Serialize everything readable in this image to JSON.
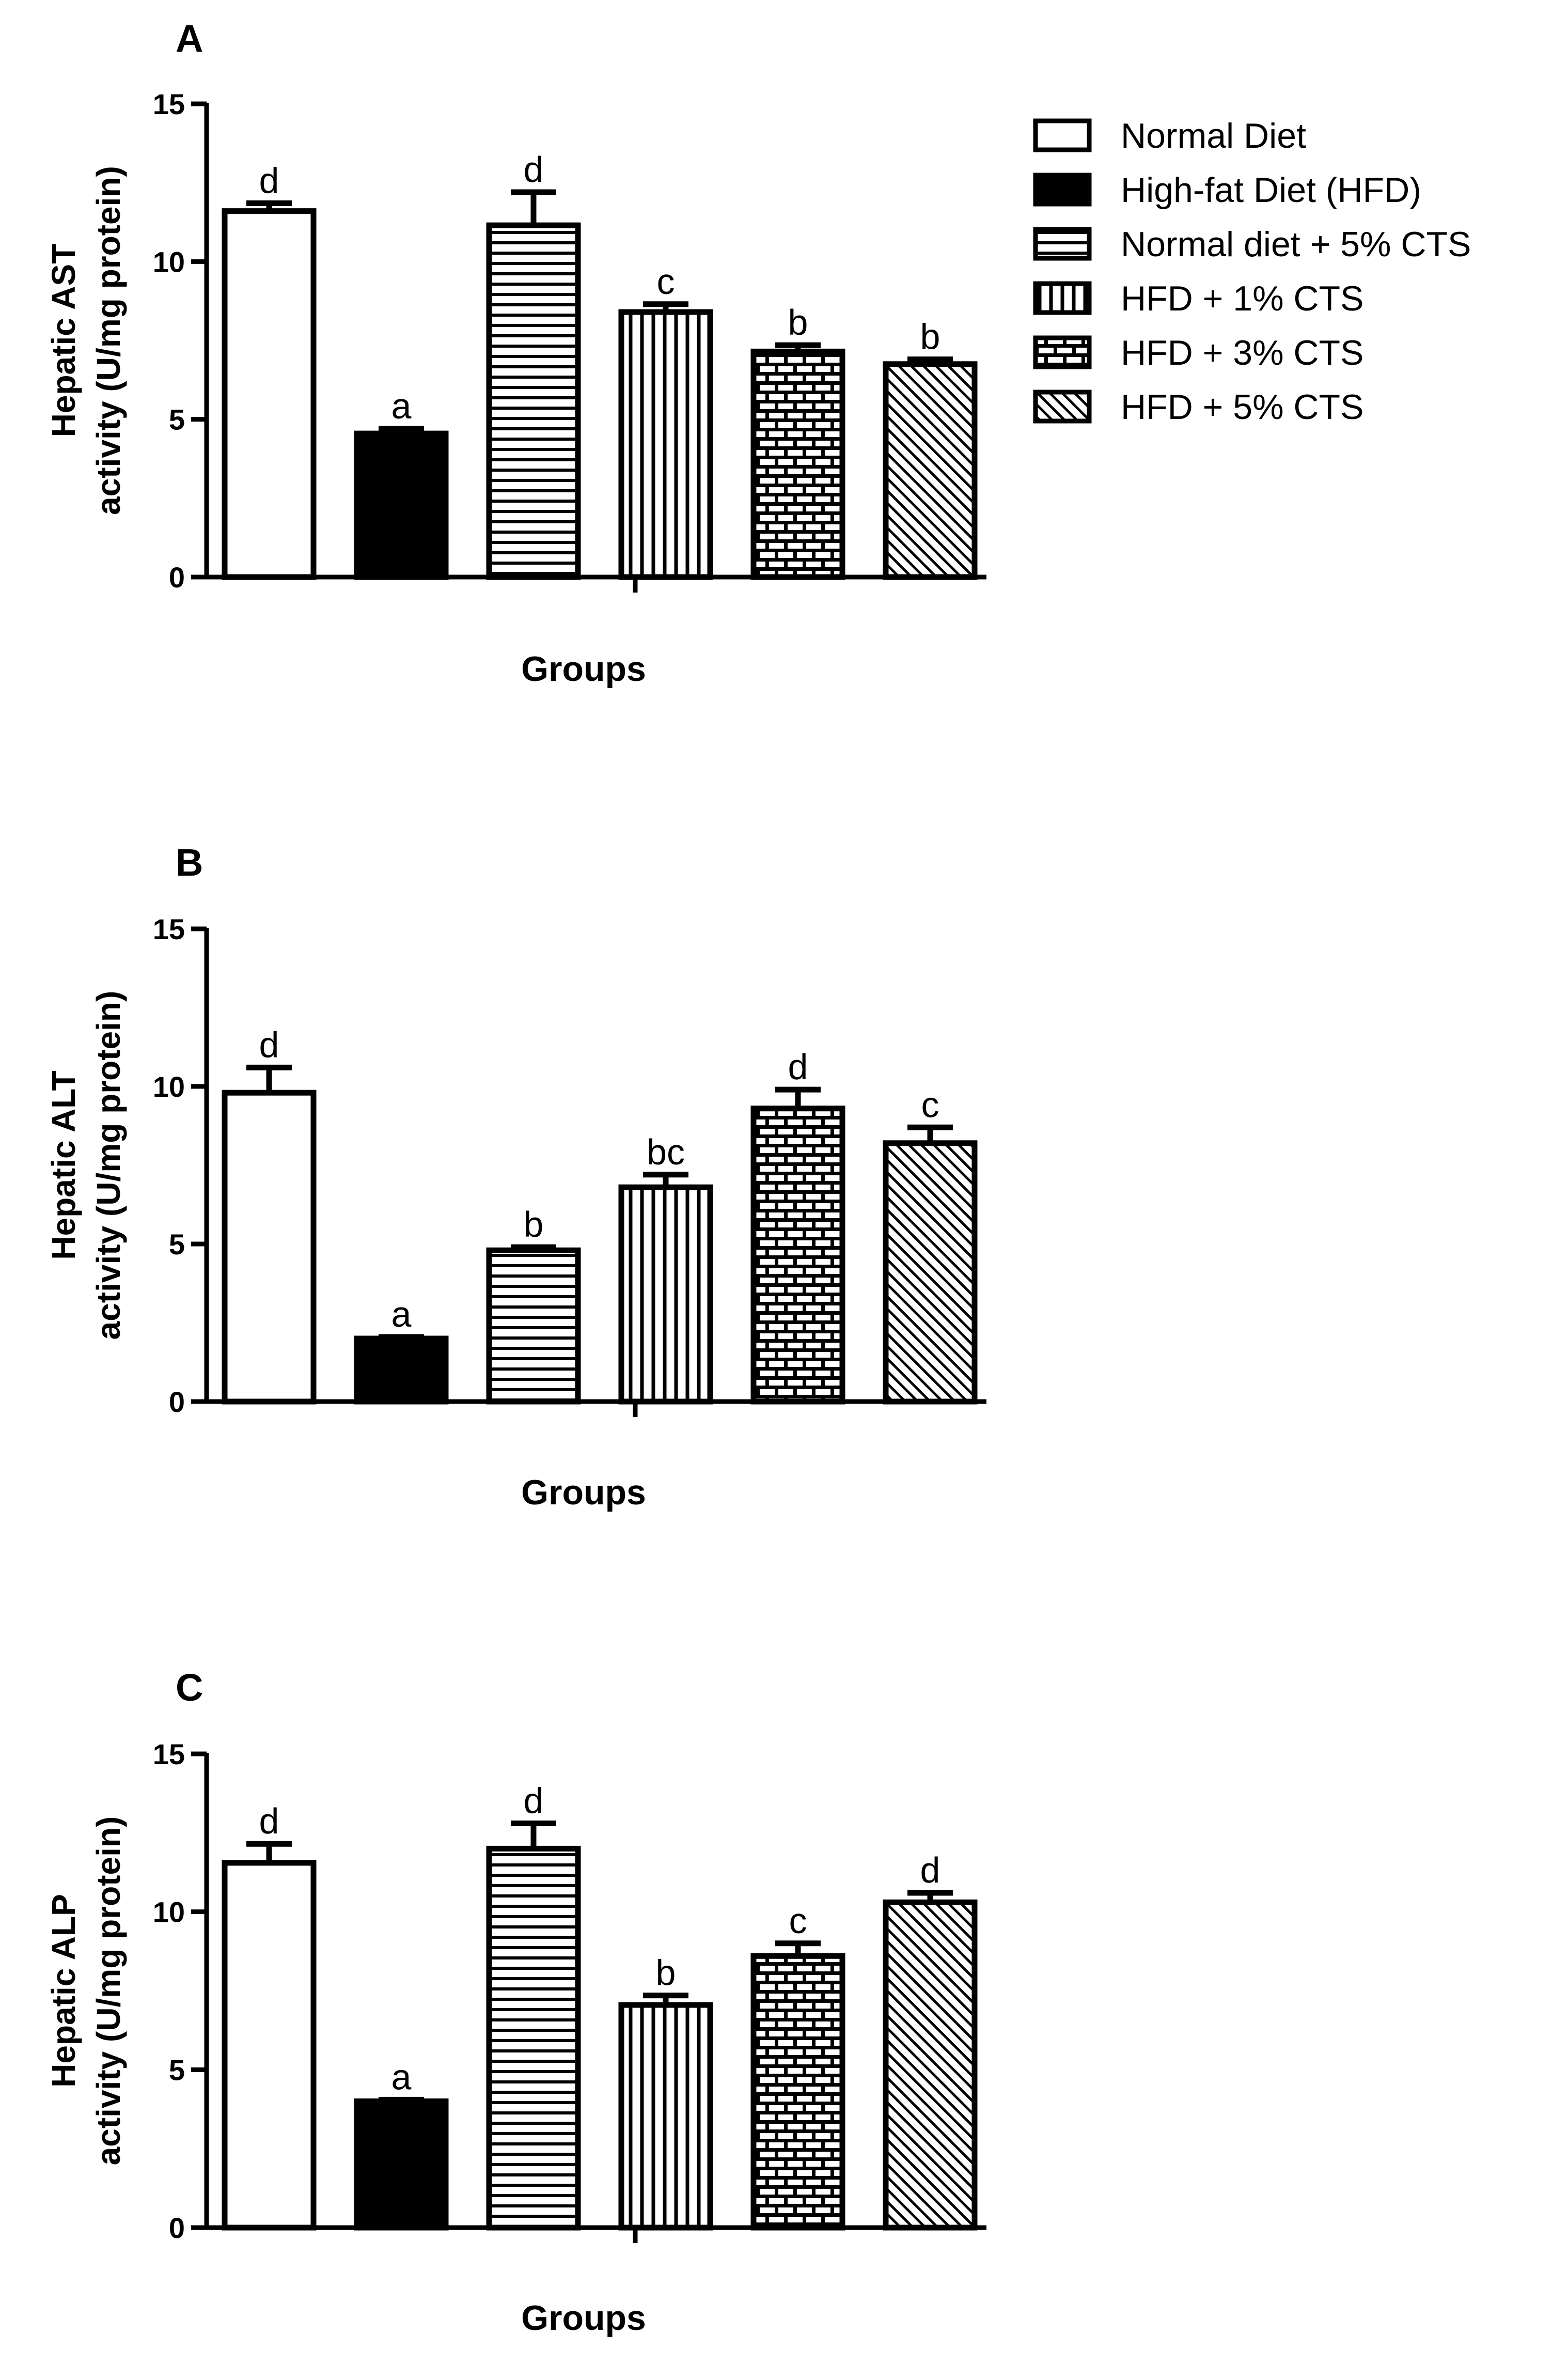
{
  "figure": {
    "groups": [
      {
        "name": "Normal Diet",
        "pattern": "white"
      },
      {
        "name": "High-fat Diet (HFD)",
        "pattern": "black"
      },
      {
        "name": "Normal diet + 5% CTS",
        "pattern": "hlines"
      },
      {
        "name": "HFD + 1% CTS",
        "pattern": "vlines"
      },
      {
        "name": "HFD + 3% CTS",
        "pattern": "bricks"
      },
      {
        "name": "HFD + 5% CTS",
        "pattern": "diag"
      }
    ]
  },
  "chart_data": [
    {
      "type": "bar",
      "panel": "A",
      "ylabel_line1": "Hepatic AST",
      "ylabel_line2": "activity (U/mg protein)",
      "xlabel": "Groups",
      "ylim": [
        0,
        15
      ],
      "yticks": [
        "0",
        "5",
        "10",
        "15"
      ],
      "categories": [
        "Normal Diet",
        "High-fat Diet (HFD)",
        "Normal diet + 5% CTS",
        "HFD + 1% CTS",
        "HFD + 3% CTS",
        "HFD + 5% CTS"
      ],
      "values": [
        11.6,
        4.55,
        11.15,
        8.4,
        7.15,
        6.75
      ],
      "errors": [
        0.25,
        0.15,
        1.05,
        0.25,
        0.2,
        0.15
      ],
      "significance": [
        "d",
        "a",
        "d",
        "c",
        "b",
        "b"
      ]
    },
    {
      "type": "bar",
      "panel": "B",
      "ylabel_line1": "Hepatic ALT",
      "ylabel_line2": "activity (U/mg protein)",
      "xlabel": "Groups",
      "ylim": [
        0,
        15
      ],
      "yticks": [
        "0",
        "5",
        "10",
        "15"
      ],
      "categories": [
        "Normal Diet",
        "High-fat Diet (HFD)",
        "Normal diet + 5% CTS",
        "HFD + 1% CTS",
        "HFD + 3% CTS",
        "HFD + 5% CTS"
      ],
      "values": [
        9.8,
        2.0,
        4.8,
        6.8,
        9.3,
        8.2
      ],
      "errors": [
        0.8,
        0.05,
        0.1,
        0.4,
        0.6,
        0.5
      ],
      "significance": [
        "d",
        "a",
        "b",
        "bc",
        "d",
        "c"
      ]
    },
    {
      "type": "bar",
      "panel": "C",
      "ylabel_line1": "Hepatic ALP",
      "ylabel_line2": "activity (U/mg protein)",
      "xlabel": "Groups",
      "ylim": [
        0,
        15
      ],
      "yticks": [
        "0",
        "5",
        "10",
        "15"
      ],
      "categories": [
        "Normal Diet",
        "High-fat Diet (HFD)",
        "Normal diet + 5% CTS",
        "HFD + 1% CTS",
        "HFD + 3% CTS",
        "HFD + 5% CTS"
      ],
      "values": [
        11.55,
        4.0,
        12.0,
        7.05,
        8.6,
        10.3
      ],
      "errors": [
        0.6,
        0.05,
        0.8,
        0.3,
        0.4,
        0.3
      ],
      "significance": [
        "d",
        "a",
        "d",
        "b",
        "c",
        "d"
      ]
    }
  ]
}
